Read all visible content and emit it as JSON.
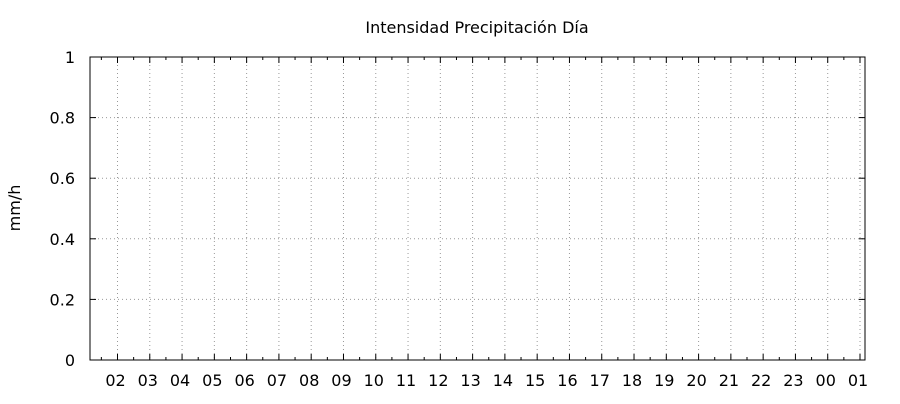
{
  "chart_data": {
    "type": "line",
    "title": "Intensidad Precipitación Día",
    "xlabel": "",
    "ylabel": "mm/h",
    "ylim": [
      0,
      1
    ],
    "y_ticks": [
      "0",
      "0.2",
      "0.4",
      "0.6",
      "0.8",
      "1"
    ],
    "x_ticks": [
      "02",
      "03",
      "04",
      "05",
      "06",
      "07",
      "08",
      "09",
      "10",
      "11",
      "12",
      "13",
      "14",
      "15",
      "16",
      "17",
      "18",
      "19",
      "20",
      "21",
      "22",
      "23",
      "00",
      "01"
    ],
    "series": [],
    "grid": true,
    "legend": "none"
  }
}
